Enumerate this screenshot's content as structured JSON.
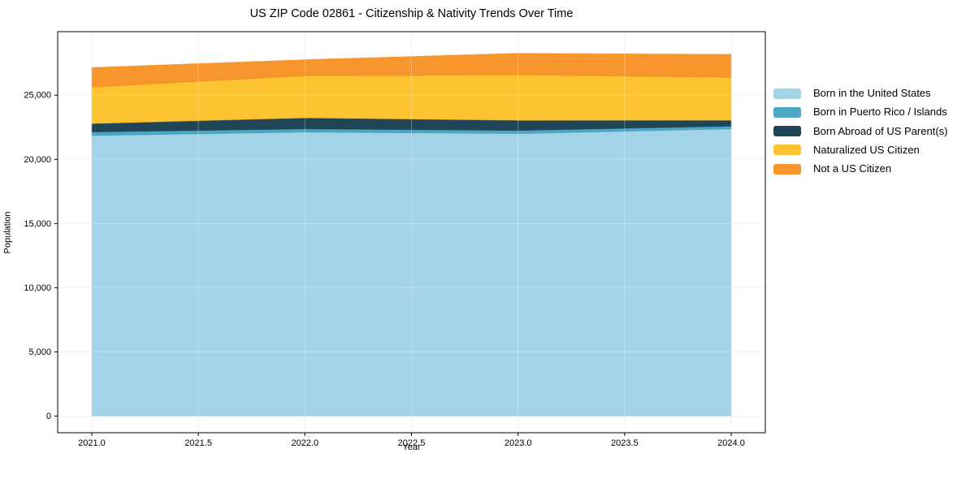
{
  "title": "US ZIP Code 02861 - Citizenship & Nativity Trends Over Time",
  "chart_data": {
    "type": "area",
    "stacked": true,
    "title": "US ZIP Code 02861 - Citizenship & Nativity Trends Over Time",
    "xlabel": "Year",
    "ylabel": "Population",
    "x": [
      2021,
      2022,
      2023,
      2024
    ],
    "x_ticks": [
      2021.0,
      2021.5,
      2022.0,
      2022.5,
      2023.0,
      2023.5,
      2024.0
    ],
    "x_tick_labels": [
      "2021.0",
      "2021.5",
      "2022.0",
      "2022.5",
      "2023.0",
      "2023.5",
      "2024.0"
    ],
    "y_ticks": [
      0,
      5000,
      10000,
      15000,
      20000,
      25000
    ],
    "y_tick_labels": [
      "0",
      "5,000",
      "10,000",
      "15,000",
      "20,000",
      "25,000"
    ],
    "xlim": [
      2020.84,
      2024.16
    ],
    "ylim": [
      -1300,
      29950
    ],
    "grid": true,
    "legend_position": "right",
    "background_color": "#ffffff",
    "grid_color": "#ececec",
    "series": [
      {
        "name": "Born in the United States",
        "color": "#a3d3e8",
        "edge": "#86bcd6",
        "values": [
          21860,
          22130,
          22010,
          22380
        ]
      },
      {
        "name": "Born in Puerto Rico / Islands",
        "color": "#4aa8c4",
        "edge": "#3c93ad",
        "values": [
          280,
          250,
          250,
          210
        ]
      },
      {
        "name": "Born Abroad of US Parent(s)",
        "color": "#1f4557",
        "edge": "#183847",
        "values": [
          650,
          850,
          780,
          460
        ]
      },
      {
        "name": "Naturalized US Citizen",
        "color": "#fdc330",
        "edge": "#efb31d",
        "values": [
          2840,
          3290,
          3560,
          3350
        ]
      },
      {
        "name": "Not a US Citizen",
        "color": "#f8952c",
        "edge": "#ec851c",
        "values": [
          1520,
          1240,
          1660,
          1780
        ]
      }
    ],
    "totals_by_year": [
      27150,
      27760,
      28260,
      28180
    ]
  }
}
